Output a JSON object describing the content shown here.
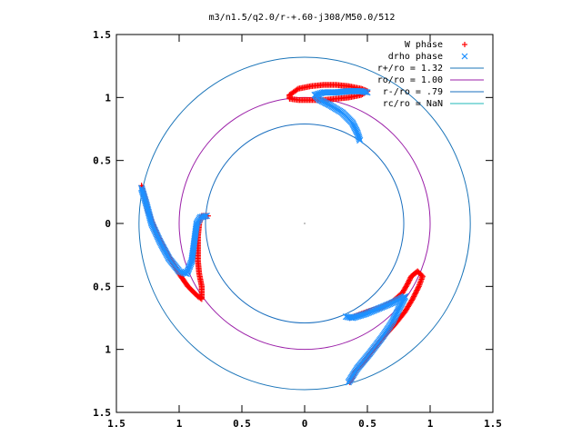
{
  "chart_data": {
    "type": "scatter",
    "title": "m3/n1.5/q2.0/r-+.60-j308/M50.0/512",
    "xlabel": "",
    "ylabel": "",
    "xlim": [
      -1.5,
      1.5
    ],
    "ylim": [
      -1.5,
      1.5
    ],
    "grid": false,
    "legend_position": "top-right",
    "x_ticks": [
      {
        "value": -1.5,
        "label": "1.5"
      },
      {
        "value": -1.0,
        "label": "1"
      },
      {
        "value": -0.5,
        "label": "0.5"
      },
      {
        "value": 0.0,
        "label": "0"
      },
      {
        "value": 0.5,
        "label": "0.5"
      },
      {
        "value": 1.0,
        "label": "1"
      },
      {
        "value": 1.5,
        "label": "1.5"
      }
    ],
    "y_ticks": [
      {
        "value": 1.5,
        "label": "1.5"
      },
      {
        "value": 1.0,
        "label": "1"
      },
      {
        "value": 0.5,
        "label": "0.5"
      },
      {
        "value": 0.0,
        "label": "0"
      },
      {
        "value": -0.5,
        "label": "0.5"
      },
      {
        "value": -1.0,
        "label": "1"
      },
      {
        "value": -1.5,
        "label": "1.5"
      }
    ],
    "circles": [
      {
        "name": "r+/ro = 1.32",
        "radius": 1.32,
        "color": "#1b75b9"
      },
      {
        "name": "ro/ro = 1.00",
        "radius": 1.0,
        "color": "#9b1fa8"
      },
      {
        "name": "r-/ro = .79",
        "radius": 0.79,
        "color": "#1a6fbf"
      },
      {
        "name": "rc/ro = NaN",
        "radius": null,
        "color": "#1fb8b8"
      }
    ],
    "series": [
      {
        "name": "W phase",
        "marker": "+",
        "color": "#ff0000",
        "segments": [
          [
            [
              -0.12,
              1.02
            ],
            [
              -0.05,
              1.07
            ],
            [
              0.05,
              1.09
            ],
            [
              0.15,
              1.1
            ],
            [
              0.25,
              1.1
            ],
            [
              0.35,
              1.09
            ],
            [
              0.45,
              1.07
            ],
            [
              0.5,
              1.05
            ],
            [
              0.45,
              1.02
            ],
            [
              0.35,
              1.0
            ],
            [
              0.25,
              0.99
            ],
            [
              0.15,
              0.98
            ],
            [
              0.05,
              0.98
            ],
            [
              -0.05,
              0.98
            ],
            [
              -0.12,
              0.99
            ],
            [
              -0.12,
              1.02
            ]
          ],
          [
            [
              -1.3,
              0.3
            ],
            [
              -1.27,
              0.2
            ],
            [
              -1.25,
              0.1
            ],
            [
              -1.21,
              0.0
            ],
            [
              -1.17,
              -0.1
            ],
            [
              -1.12,
              -0.2
            ],
            [
              -1.06,
              -0.3
            ],
            [
              -1.0,
              -0.4
            ],
            [
              -0.93,
              -0.5
            ],
            [
              -0.85,
              -0.58
            ],
            [
              -0.82,
              -0.6
            ],
            [
              -0.82,
              -0.5
            ],
            [
              -0.84,
              -0.4
            ],
            [
              -0.85,
              -0.3
            ],
            [
              -0.85,
              -0.2
            ],
            [
              -0.85,
              -0.1
            ],
            [
              -0.84,
              0.0
            ],
            [
              -0.82,
              0.06
            ],
            [
              -0.77,
              0.06
            ]
          ],
          [
            [
              0.36,
              -1.26
            ],
            [
              0.4,
              -1.18
            ],
            [
              0.47,
              -1.1
            ],
            [
              0.55,
              -1.0
            ],
            [
              0.63,
              -0.9
            ],
            [
              0.72,
              -0.8
            ],
            [
              0.8,
              -0.7
            ],
            [
              0.86,
              -0.6
            ],
            [
              0.91,
              -0.5
            ],
            [
              0.94,
              -0.42
            ],
            [
              0.9,
              -0.38
            ],
            [
              0.85,
              -0.42
            ],
            [
              0.82,
              -0.48
            ],
            [
              0.78,
              -0.55
            ],
            [
              0.7,
              -0.62
            ],
            [
              0.6,
              -0.67
            ],
            [
              0.5,
              -0.7
            ],
            [
              0.42,
              -0.73
            ],
            [
              0.36,
              -0.75
            ]
          ]
        ]
      },
      {
        "name": "drho phase",
        "marker": "x",
        "color": "#1e90ff",
        "segments": [
          [
            [
              0.44,
              0.66
            ],
            [
              0.42,
              0.72
            ],
            [
              0.38,
              0.8
            ],
            [
              0.3,
              0.88
            ],
            [
              0.2,
              0.94
            ],
            [
              0.12,
              0.98
            ],
            [
              0.08,
              1.02
            ],
            [
              0.15,
              1.04
            ],
            [
              0.25,
              1.04
            ],
            [
              0.35,
              1.05
            ],
            [
              0.45,
              1.05
            ],
            [
              0.5,
              1.04
            ]
          ],
          [
            [
              -1.3,
              0.28
            ],
            [
              -1.26,
              0.15
            ],
            [
              -1.22,
              0.0
            ],
            [
              -1.15,
              -0.15
            ],
            [
              -1.08,
              -0.28
            ],
            [
              -1.0,
              -0.38
            ],
            [
              -0.94,
              -0.4
            ],
            [
              -0.9,
              -0.3
            ],
            [
              -0.88,
              -0.15
            ],
            [
              -0.86,
              0.0
            ],
            [
              -0.83,
              0.05
            ],
            [
              -0.78,
              0.06
            ]
          ],
          [
            [
              0.35,
              -1.26
            ],
            [
              0.42,
              -1.15
            ],
            [
              0.52,
              -1.03
            ],
            [
              0.62,
              -0.9
            ],
            [
              0.7,
              -0.78
            ],
            [
              0.76,
              -0.66
            ],
            [
              0.8,
              -0.58
            ],
            [
              0.7,
              -0.63
            ],
            [
              0.58,
              -0.68
            ],
            [
              0.48,
              -0.72
            ],
            [
              0.38,
              -0.75
            ],
            [
              0.33,
              -0.74
            ]
          ]
        ]
      }
    ]
  }
}
